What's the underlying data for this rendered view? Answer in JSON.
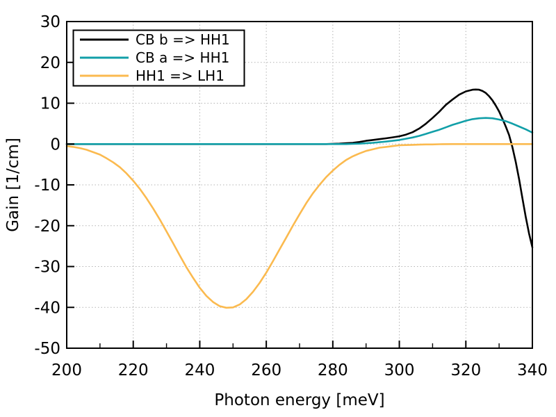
{
  "window": {
    "background": "#ffffff"
  },
  "chart_data": {
    "type": "line",
    "title": "",
    "xlabel": "Photon energy [meV]",
    "ylabel": "Gain [1/cm]",
    "xlim": [
      200,
      340
    ],
    "ylim": [
      -50,
      30
    ],
    "xticks": [
      200,
      220,
      240,
      260,
      280,
      300,
      320,
      340
    ],
    "yticks": [
      -50,
      -40,
      -30,
      -20,
      -10,
      0,
      10,
      20,
      30
    ],
    "x_minor_ticks": [
      210,
      230,
      250,
      270,
      290,
      310,
      330
    ],
    "grid": true,
    "grid_style": "dotted",
    "legend_position": "top-left",
    "colors": {
      "grid": "#b3b3b3",
      "axis": "#000000",
      "background": "#ffffff",
      "legend_border": "#000000"
    },
    "series": [
      {
        "name": "CB b => HH1",
        "color": "#000000",
        "points": [
          [
            200,
            0
          ],
          [
            210,
            0
          ],
          [
            220,
            0
          ],
          [
            230,
            0
          ],
          [
            240,
            0
          ],
          [
            250,
            0
          ],
          [
            260,
            0
          ],
          [
            270,
            0
          ],
          [
            278,
            0
          ],
          [
            282,
            0.1
          ],
          [
            284,
            0.2
          ],
          [
            286,
            0.3
          ],
          [
            288,
            0.5
          ],
          [
            290,
            0.8
          ],
          [
            292,
            1.0
          ],
          [
            294,
            1.2
          ],
          [
            296,
            1.4
          ],
          [
            298,
            1.65
          ],
          [
            300,
            1.9
          ],
          [
            302,
            2.3
          ],
          [
            304,
            2.9
          ],
          [
            306,
            3.8
          ],
          [
            308,
            5.0
          ],
          [
            310,
            6.4
          ],
          [
            312,
            7.9
          ],
          [
            314,
            9.6
          ],
          [
            316,
            10.9
          ],
          [
            318,
            12.1
          ],
          [
            320,
            12.9
          ],
          [
            322,
            13.3
          ],
          [
            323,
            13.35
          ],
          [
            324,
            13.3
          ],
          [
            325,
            13.0
          ],
          [
            326,
            12.5
          ],
          [
            327,
            11.7
          ],
          [
            328,
            10.7
          ],
          [
            329,
            9.4
          ],
          [
            330,
            8.0
          ],
          [
            331,
            6.2
          ],
          [
            332,
            4.3
          ],
          [
            333,
            2.2
          ],
          [
            334,
            -0.8
          ],
          [
            335,
            -4.4
          ],
          [
            336,
            -8.6
          ],
          [
            337,
            -13.2
          ],
          [
            338,
            -17.8
          ],
          [
            339,
            -21.9
          ],
          [
            340,
            -25.3
          ]
        ]
      },
      {
        "name": "CB a => HH1",
        "color": "#119fa8",
        "points": [
          [
            200,
            0
          ],
          [
            210,
            0
          ],
          [
            220,
            0
          ],
          [
            230,
            0
          ],
          [
            240,
            0
          ],
          [
            250,
            0
          ],
          [
            260,
            0
          ],
          [
            270,
            0
          ],
          [
            280,
            0
          ],
          [
            284,
            0
          ],
          [
            286,
            0.05
          ],
          [
            288,
            0.1
          ],
          [
            290,
            0.2
          ],
          [
            292,
            0.3
          ],
          [
            294,
            0.45
          ],
          [
            296,
            0.6
          ],
          [
            298,
            0.8
          ],
          [
            300,
            1.0
          ],
          [
            302,
            1.3
          ],
          [
            304,
            1.6
          ],
          [
            306,
            2.0
          ],
          [
            308,
            2.5
          ],
          [
            310,
            3.0
          ],
          [
            312,
            3.5
          ],
          [
            314,
            4.1
          ],
          [
            316,
            4.7
          ],
          [
            318,
            5.2
          ],
          [
            320,
            5.7
          ],
          [
            322,
            6.1
          ],
          [
            324,
            6.3
          ],
          [
            325,
            6.35
          ],
          [
            326,
            6.4
          ],
          [
            327,
            6.35
          ],
          [
            328,
            6.3
          ],
          [
            330,
            6.0
          ],
          [
            332,
            5.6
          ],
          [
            334,
            5.0
          ],
          [
            336,
            4.3
          ],
          [
            338,
            3.6
          ],
          [
            340,
            2.8
          ]
        ]
      },
      {
        "name": "HH1 => LH1",
        "color": "#fbba4f",
        "points": [
          [
            200,
            -0.5
          ],
          [
            202,
            -0.7
          ],
          [
            204,
            -1.0
          ],
          [
            206,
            -1.4
          ],
          [
            208,
            -2.0
          ],
          [
            210,
            -2.6
          ],
          [
            212,
            -3.5
          ],
          [
            214,
            -4.5
          ],
          [
            216,
            -5.7
          ],
          [
            218,
            -7.2
          ],
          [
            220,
            -9.0
          ],
          [
            222,
            -11.0
          ],
          [
            224,
            -13.3
          ],
          [
            226,
            -15.8
          ],
          [
            228,
            -18.5
          ],
          [
            230,
            -21.4
          ],
          [
            232,
            -24.3
          ],
          [
            234,
            -27.3
          ],
          [
            236,
            -30.2
          ],
          [
            238,
            -32.8
          ],
          [
            240,
            -35.2
          ],
          [
            242,
            -37.2
          ],
          [
            244,
            -38.7
          ],
          [
            246,
            -39.7
          ],
          [
            248,
            -40.1
          ],
          [
            250,
            -40.0
          ],
          [
            252,
            -39.3
          ],
          [
            254,
            -38.0
          ],
          [
            256,
            -36.2
          ],
          [
            258,
            -34.0
          ],
          [
            260,
            -31.5
          ],
          [
            262,
            -28.7
          ],
          [
            264,
            -25.8
          ],
          [
            266,
            -22.9
          ],
          [
            268,
            -20.0
          ],
          [
            270,
            -17.2
          ],
          [
            272,
            -14.5
          ],
          [
            274,
            -12.1
          ],
          [
            276,
            -10.0
          ],
          [
            278,
            -8.1
          ],
          [
            280,
            -6.5
          ],
          [
            282,
            -5.1
          ],
          [
            284,
            -3.9
          ],
          [
            286,
            -3.0
          ],
          [
            288,
            -2.3
          ],
          [
            290,
            -1.7
          ],
          [
            292,
            -1.3
          ],
          [
            294,
            -0.9
          ],
          [
            296,
            -0.7
          ],
          [
            298,
            -0.5
          ],
          [
            300,
            -0.3
          ],
          [
            302,
            -0.25
          ],
          [
            304,
            -0.2
          ],
          [
            306,
            -0.15
          ],
          [
            308,
            -0.1
          ],
          [
            310,
            -0.1
          ],
          [
            312,
            -0.05
          ],
          [
            316,
            0
          ],
          [
            320,
            0
          ],
          [
            330,
            0
          ],
          [
            340,
            0
          ]
        ]
      }
    ]
  }
}
